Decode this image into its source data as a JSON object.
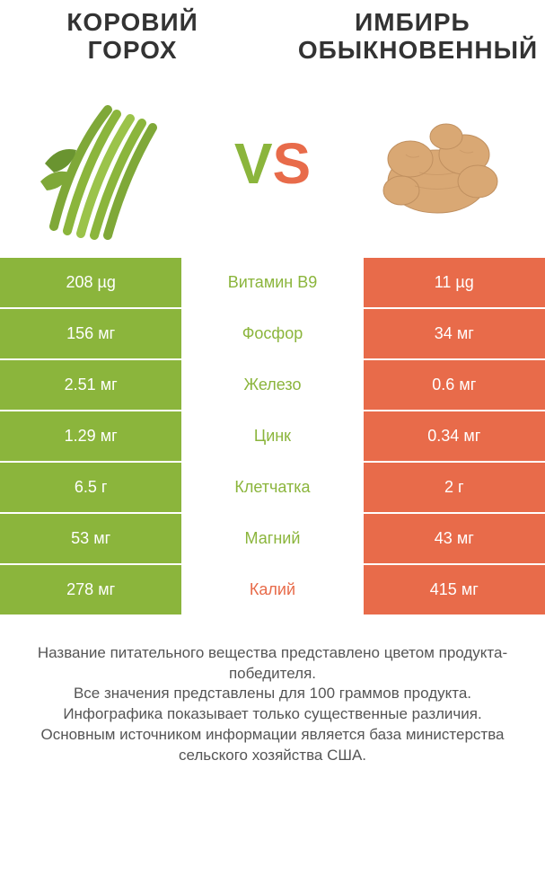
{
  "colors": {
    "left": "#8bb53c",
    "right": "#e86b4a",
    "bg": "#ffffff",
    "text": "#333333",
    "footer": "#555555"
  },
  "titles": {
    "left_line1": "КОРОВИЙ",
    "left_line2": "ГОРОХ",
    "right_line1": "ИМБИРЬ",
    "right_line2": "ОБЫКНОВЕННЫЙ"
  },
  "vs": {
    "v": "V",
    "s": "S"
  },
  "rows": [
    {
      "left": "208 µg",
      "label": "Витамин B9",
      "right": "11 µg",
      "winner": "left"
    },
    {
      "left": "156 мг",
      "label": "Фосфор",
      "right": "34 мг",
      "winner": "left"
    },
    {
      "left": "2.51 мг",
      "label": "Железо",
      "right": "0.6 мг",
      "winner": "left"
    },
    {
      "left": "1.29 мг",
      "label": "Цинк",
      "right": "0.34 мг",
      "winner": "left"
    },
    {
      "left": "6.5 г",
      "label": "Клетчатка",
      "right": "2 г",
      "winner": "left"
    },
    {
      "left": "53 мг",
      "label": "Магний",
      "right": "43 мг",
      "winner": "left"
    },
    {
      "left": "278 мг",
      "label": "Калий",
      "right": "415 мг",
      "winner": "right"
    }
  ],
  "footer": {
    "line1": "Название питательного вещества представлено цветом продукта-победителя.",
    "line2": "Все значения представлены для 100 граммов продукта.",
    "line3": "Инфографика показывает только существенные различия.",
    "line4": "Основным источником информации является база министерства сельского хозяйства США."
  }
}
